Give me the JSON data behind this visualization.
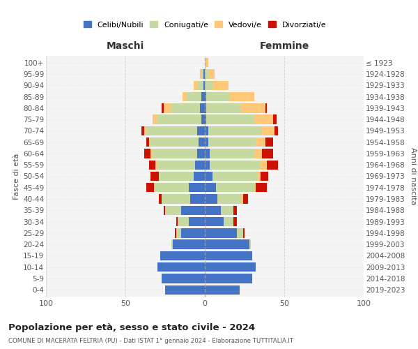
{
  "age_groups": [
    "0-4",
    "5-9",
    "10-14",
    "15-19",
    "20-24",
    "25-29",
    "30-34",
    "35-39",
    "40-44",
    "45-49",
    "50-54",
    "55-59",
    "60-64",
    "65-69",
    "70-74",
    "75-79",
    "80-84",
    "85-89",
    "90-94",
    "95-99",
    "100+"
  ],
  "birth_years": [
    "2019-2023",
    "2014-2018",
    "2009-2013",
    "2004-2008",
    "1999-2003",
    "1994-1998",
    "1989-1993",
    "1984-1988",
    "1979-1983",
    "1974-1978",
    "1969-1973",
    "1964-1968",
    "1959-1963",
    "1954-1958",
    "1949-1953",
    "1944-1948",
    "1939-1943",
    "1934-1938",
    "1929-1933",
    "1924-1928",
    "≤ 1923"
  ],
  "colors": {
    "celibi": "#4472c4",
    "coniugati": "#c5d9a0",
    "vedovi": "#ffc878",
    "divorziati": "#cc1100"
  },
  "maschi": {
    "celibi": [
      25,
      27,
      30,
      28,
      20,
      15,
      10,
      15,
      9,
      10,
      7,
      6,
      5,
      4,
      5,
      2,
      3,
      2,
      1,
      1,
      0
    ],
    "coniugati": [
      0,
      0,
      0,
      0,
      1,
      3,
      7,
      10,
      18,
      22,
      22,
      24,
      28,
      30,
      32,
      28,
      18,
      10,
      4,
      1,
      0
    ],
    "vedovi": [
      0,
      0,
      0,
      0,
      0,
      0,
      0,
      0,
      0,
      0,
      0,
      1,
      1,
      1,
      1,
      3,
      5,
      2,
      2,
      1,
      0
    ],
    "divorziati": [
      0,
      0,
      0,
      0,
      0,
      1,
      1,
      1,
      2,
      5,
      5,
      4,
      4,
      2,
      2,
      0,
      1,
      0,
      0,
      0,
      0
    ]
  },
  "femmine": {
    "celibi": [
      22,
      30,
      32,
      30,
      28,
      20,
      12,
      10,
      8,
      7,
      5,
      3,
      3,
      2,
      2,
      1,
      1,
      1,
      0,
      0,
      0
    ],
    "coniugati": [
      0,
      0,
      0,
      0,
      1,
      4,
      6,
      8,
      15,
      24,
      28,
      32,
      28,
      30,
      34,
      30,
      22,
      15,
      5,
      2,
      1
    ],
    "vedovi": [
      0,
      0,
      0,
      0,
      0,
      0,
      0,
      0,
      1,
      1,
      2,
      4,
      5,
      6,
      8,
      12,
      15,
      15,
      10,
      4,
      1
    ],
    "divorziati": [
      0,
      0,
      0,
      0,
      0,
      1,
      2,
      2,
      3,
      7,
      5,
      7,
      7,
      5,
      2,
      2,
      1,
      0,
      0,
      0,
      0
    ]
  },
  "title": "Popolazione per età, sesso e stato civile - 2024",
  "subtitle": "COMUNE DI MACERATA FELTRIA (PU) - Dati ISTAT 1° gennaio 2024 - Elaborazione TUTTITALIA.IT",
  "header_left": "Maschi",
  "header_right": "Femmine",
  "ylabel_left": "Fasce di età",
  "ylabel_right": "Anni di nascita",
  "xlim": 100,
  "legend_labels": [
    "Celibi/Nubili",
    "Coniugati/e",
    "Vedovi/e",
    "Divorziati/e"
  ],
  "bg_color": "#f4f4f4",
  "grid_color": "#cccccc"
}
